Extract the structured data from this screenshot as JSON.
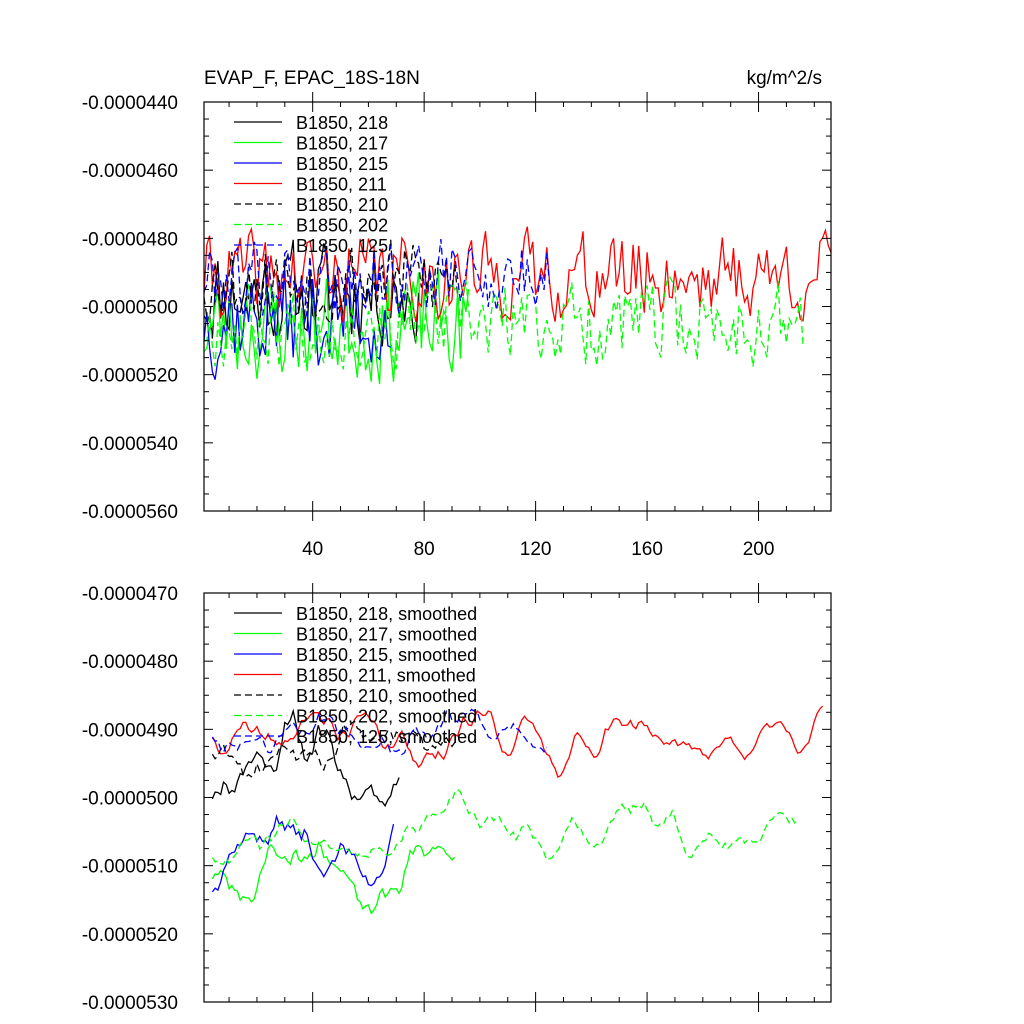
{
  "chart_data": [
    {
      "type": "line",
      "title_left": "EVAP_F, EPAC_18S-18N",
      "title_right": "kg/m^2/s",
      "xlim": [
        1,
        226
      ],
      "ylim": [
        -5.6e-05,
        -4.4e-05
      ],
      "x_ticks": [
        40,
        80,
        120,
        160,
        200
      ],
      "x_tick_labels": [
        "40",
        "80",
        "120",
        "160",
        "200"
      ],
      "y_ticks": [
        -4.4e-05,
        -4.6e-05,
        -4.8e-05,
        -5e-05,
        -5.2e-05,
        -5.4e-05,
        -5.6e-05
      ],
      "y_tick_labels": [
        "-0.0000440",
        "-0.0000460",
        "-0.0000480",
        "-0.0000500",
        "-0.0000520",
        "-0.0000540",
        "-0.0000560"
      ],
      "series": [
        {
          "name": "B1850, 218",
          "label": "B1850, 218",
          "color": "#000000",
          "dash": "solid",
          "start": 1,
          "length": 78,
          "mean": -4.96e-05,
          "amp": 1.3e-06,
          "seed": 11
        },
        {
          "name": "B1850, 217",
          "label": "B1850, 217",
          "color": "#00ff00",
          "dash": "solid",
          "start": 1,
          "length": 96,
          "mean": -5.06e-05,
          "amp": 1.4e-06,
          "seed": 23
        },
        {
          "name": "B1850, 215",
          "label": "B1850, 215",
          "color": "#0000ff",
          "dash": "solid",
          "start": 1,
          "length": 68,
          "mean": -5.03e-05,
          "amp": 1.4e-06,
          "seed": 37
        },
        {
          "name": "B1850, 211",
          "label": "B1850, 211",
          "color": "#ff0000",
          "dash": "solid",
          "start": 1,
          "length": 226,
          "mean": -4.91e-05,
          "amp": 1.1e-06,
          "seed": 41
        },
        {
          "name": "B1850, 210",
          "label": "B1850, 210",
          "color": "#000000",
          "dash": "dash",
          "start": 1,
          "length": 92,
          "mean": -4.92e-05,
          "amp": 1.1e-06,
          "seed": 53
        },
        {
          "name": "B1850, 202",
          "label": "B1850, 202",
          "color": "#00ff00",
          "dash": "dash",
          "start": 1,
          "length": 216,
          "mean": -5.05e-05,
          "amp": 1.1e-06,
          "seed": 67
        },
        {
          "name": "B1850, 125",
          "label": "B1850, 125",
          "color": "#0000ff",
          "dash": "dash",
          "start": 1,
          "length": 125,
          "mean": -4.91e-05,
          "amp": 1e-06,
          "seed": 79
        }
      ]
    },
    {
      "type": "line",
      "xlim": [
        1,
        226
      ],
      "ylim": [
        -5.3e-05,
        -4.7e-05
      ],
      "x_ticks": [
        40,
        80,
        120,
        160,
        200
      ],
      "y_ticks": [
        -4.7e-05,
        -4.8e-05,
        -4.9e-05,
        -5e-05,
        -5.1e-05,
        -5.2e-05,
        -5.3e-05
      ],
      "y_tick_labels": [
        "-0.0000470",
        "-0.0000480",
        "-0.0000490",
        "-0.0000500",
        "-0.0000510",
        "-0.0000520",
        "-0.0000530"
      ],
      "series": [
        {
          "name": "B1850, 218, smoothed",
          "label": "B1850, 218, smoothed",
          "color": "#000000",
          "dash": "solid",
          "start": 4,
          "length": 68,
          "mean": -4.94e-05,
          "amp": 5e-07,
          "seed": 11
        },
        {
          "name": "B1850, 217, smoothed",
          "label": "B1850, 217, smoothed",
          "color": "#00ff00",
          "dash": "solid",
          "start": 4,
          "length": 88,
          "mean": -5.1e-05,
          "amp": 4e-07,
          "seed": 23
        },
        {
          "name": "B1850, 215, smoothed",
          "label": "B1850, 215, smoothed",
          "color": "#0000ff",
          "dash": "solid",
          "start": 4,
          "length": 66,
          "mean": -5.07e-05,
          "amp": 4e-07,
          "seed": 37
        },
        {
          "name": "B1850, 211, smoothed",
          "label": "B1850, 211, smoothed",
          "color": "#ff0000",
          "dash": "solid",
          "start": 4,
          "length": 220,
          "mean": -4.91e-05,
          "amp": 3e-07,
          "seed": 41
        },
        {
          "name": "B1850, 210, smoothed",
          "label": "B1850, 210, smoothed",
          "color": "#000000",
          "dash": "dash",
          "start": 4,
          "length": 89,
          "mean": -4.91e-05,
          "amp": 4e-07,
          "seed": 53
        },
        {
          "name": "B1850, 202, smoothed",
          "label": "B1850, 202, smoothed",
          "color": "#00ff00",
          "dash": "dash",
          "start": 4,
          "length": 211,
          "mean": -5.05e-05,
          "amp": 3e-07,
          "seed": 67
        },
        {
          "name": "B1850, 125, smoothed",
          "label": "B1850, 125, smoothed",
          "color": "#0000ff",
          "dash": "dash",
          "start": 4,
          "length": 121,
          "mean": -4.9e-05,
          "amp": 3e-07,
          "seed": 79
        }
      ]
    }
  ]
}
